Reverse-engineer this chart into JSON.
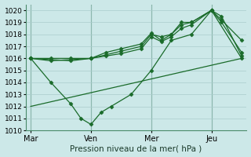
{
  "xlabel": "Pression niveau de la mer( hPa )",
  "bg_color": "#cce8e8",
  "grid_color": "#aacccc",
  "line_color": "#1a6b2a",
  "ylim": [
    1010,
    1020.5
  ],
  "yticks": [
    1010,
    1011,
    1012,
    1013,
    1014,
    1015,
    1016,
    1017,
    1018,
    1019,
    1020
  ],
  "xtick_labels": [
    "Mar",
    "Ven",
    "Mer",
    "Jeu"
  ],
  "xtick_positions": [
    0,
    24,
    48,
    72
  ],
  "xlim": [
    -2,
    86
  ],
  "series": [
    {
      "x": [
        0,
        8,
        16,
        24,
        30,
        36,
        44,
        48,
        52,
        56,
        60,
        64,
        72,
        76,
        84
      ],
      "y": [
        1016.0,
        1016.0,
        1016.0,
        1016.0,
        1016.3,
        1016.6,
        1017.0,
        1018.0,
        1017.8,
        1018.0,
        1018.8,
        1019.0,
        1020.0,
        1019.2,
        1017.5
      ],
      "marker": "D",
      "ms": 2.5,
      "lw": 0.9
    },
    {
      "x": [
        0,
        8,
        16,
        24,
        30,
        36,
        44,
        48,
        52,
        56,
        60,
        64,
        72,
        76,
        84
      ],
      "y": [
        1016.0,
        1015.8,
        1015.9,
        1016.0,
        1016.5,
        1016.8,
        1017.2,
        1018.1,
        1017.5,
        1018.0,
        1019.0,
        1019.0,
        1020.0,
        1019.5,
        1016.2
      ],
      "marker": "D",
      "ms": 2.5,
      "lw": 0.9
    },
    {
      "x": [
        0,
        8,
        16,
        24,
        30,
        36,
        44,
        48,
        52,
        56,
        60,
        64,
        72,
        76,
        84
      ],
      "y": [
        1016.0,
        1015.9,
        1015.8,
        1016.0,
        1016.2,
        1016.4,
        1016.8,
        1017.8,
        1017.4,
        1017.8,
        1018.5,
        1018.8,
        1020.0,
        1019.0,
        1016.5
      ],
      "marker": "D",
      "ms": 2.5,
      "lw": 0.9
    },
    {
      "x": [
        0,
        8,
        16,
        20,
        24,
        28,
        32,
        40,
        48,
        56,
        64,
        72,
        84
      ],
      "y": [
        1016.0,
        1014.0,
        1012.2,
        1011.0,
        1010.5,
        1011.5,
        1012.0,
        1013.0,
        1015.0,
        1017.5,
        1018.0,
        1020.0,
        1016.0
      ],
      "marker": "D",
      "ms": 2.5,
      "lw": 0.9
    },
    {
      "x": [
        0,
        84
      ],
      "y": [
        1012.0,
        1016.0
      ],
      "marker": null,
      "ms": 0,
      "lw": 0.9
    }
  ]
}
